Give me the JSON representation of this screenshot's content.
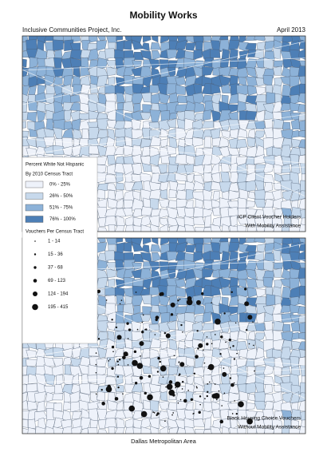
{
  "header": {
    "title": "Mobility Works",
    "organization": "Inclusive Communities Project, Inc.",
    "date": "April 2013"
  },
  "legend": {
    "title_line1": "Percent White Not Hispanic",
    "title_line2": "By 2010 Census Tract",
    "classes": [
      "0% - 25%",
      "26% - 50%",
      "51% - 75%",
      "76% - 100%"
    ],
    "dots_title": "Vouchers Per Census Tract",
    "dots": [
      "1 - 14",
      "15 - 36",
      "37 - 68",
      "69 - 123",
      "124 - 194",
      "195 - 415"
    ]
  },
  "maps": [
    {
      "caption": [
        "ICP Client Voucher Holders",
        "With Mobility Assistance"
      ]
    },
    {
      "caption": [
        "Black Housing Choice Vouchers",
        "Without Mobility Assistance"
      ]
    }
  ],
  "footer": "Dallas Metropolitan Area"
}
